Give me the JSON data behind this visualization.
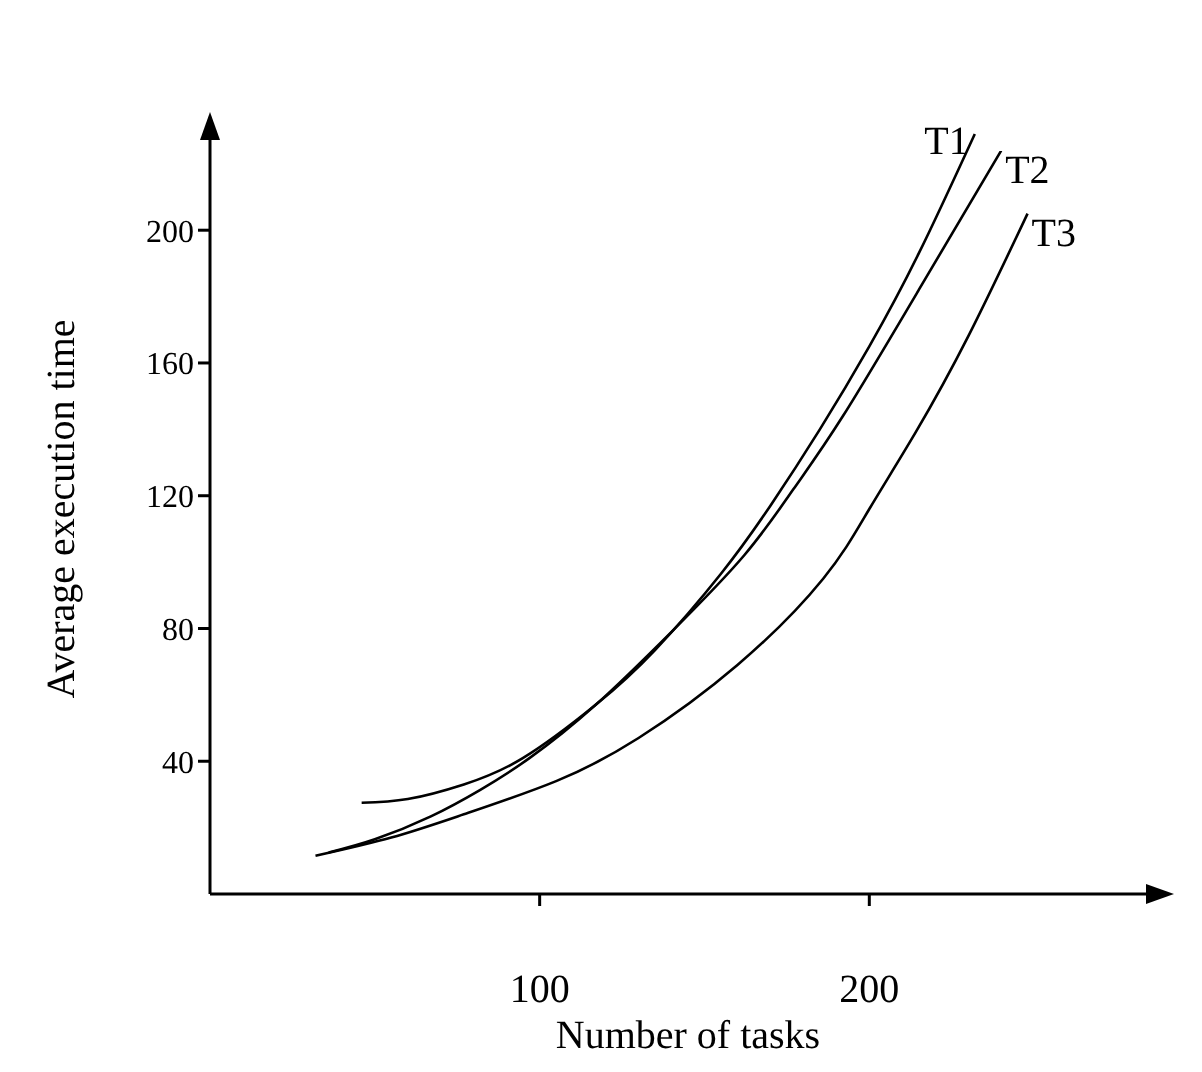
{
  "chart_data": {
    "type": "line",
    "xlabel": "Number of tasks",
    "ylabel": "Average execution time",
    "xlim": [
      0,
      290
    ],
    "ylim": [
      0,
      232
    ],
    "xticks": [
      100,
      200
    ],
    "yticks": [
      40,
      80,
      120,
      160,
      200
    ],
    "grid": false,
    "marker": "none",
    "line_style": "solid",
    "series": [
      {
        "name": "T1",
        "color": "#000000",
        "x": [
          46,
          60,
          77,
          95,
          117,
          135,
          155,
          170,
          185,
          200,
          215,
          232
        ],
        "values": [
          27.5,
          28.6,
          33,
          41,
          57,
          73.5,
          96.5,
          117,
          140,
          165,
          193,
          229
        ]
      },
      {
        "name": "T2",
        "color": "#000000",
        "x": [
          36,
          50,
          67,
          82,
          97,
          117,
          140,
          162,
          177,
          192,
          215,
          240
        ],
        "values": [
          12.5,
          16.5,
          23.4,
          31.4,
          41,
          57,
          79,
          102,
          122,
          144,
          182,
          224
        ]
      },
      {
        "name": "T3",
        "color": "#000000",
        "x": [
          32,
          55,
          77,
          105,
          130,
          160,
          186,
          200,
          214,
          230,
          248
        ],
        "values": [
          11.5,
          17,
          24,
          34,
          47,
          69,
          95,
          116,
          139,
          168,
          205
        ]
      }
    ]
  }
}
